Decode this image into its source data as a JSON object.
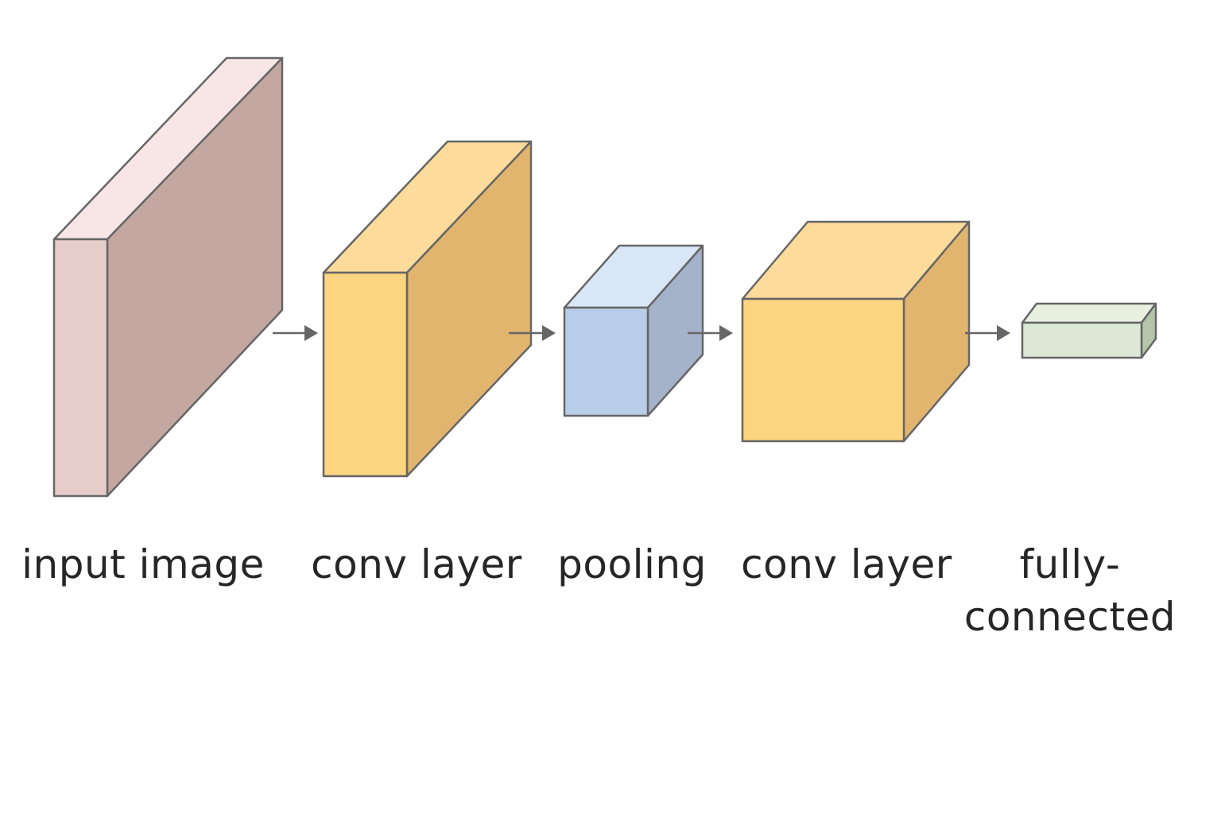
{
  "layers": [
    {
      "label": "input image",
      "colors": {
        "front": "#e7cdc9",
        "top": "#f8e6e6",
        "side": "#c4a7a1"
      }
    },
    {
      "label": "conv layer",
      "colors": {
        "front": "#fdd581",
        "top": "#fddb9b",
        "side": "#e2b56f"
      }
    },
    {
      "label": "pooling",
      "colors": {
        "front": "#b8cde7",
        "top": "#d8e6f6",
        "side": "#a4b2ca"
      }
    },
    {
      "label": "conv layer",
      "colors": {
        "front": "#fdd581",
        "top": "#fddb9b",
        "side": "#e2b56f"
      }
    },
    {
      "label_line1": "fully-",
      "label_line2": "connected",
      "colors": {
        "front": "#dce8d5",
        "top": "#e8f1e0",
        "side": "#b5c5a9"
      }
    }
  ],
  "connector_color": "#666666",
  "outline_color": "#666666",
  "label_color": "#262626"
}
